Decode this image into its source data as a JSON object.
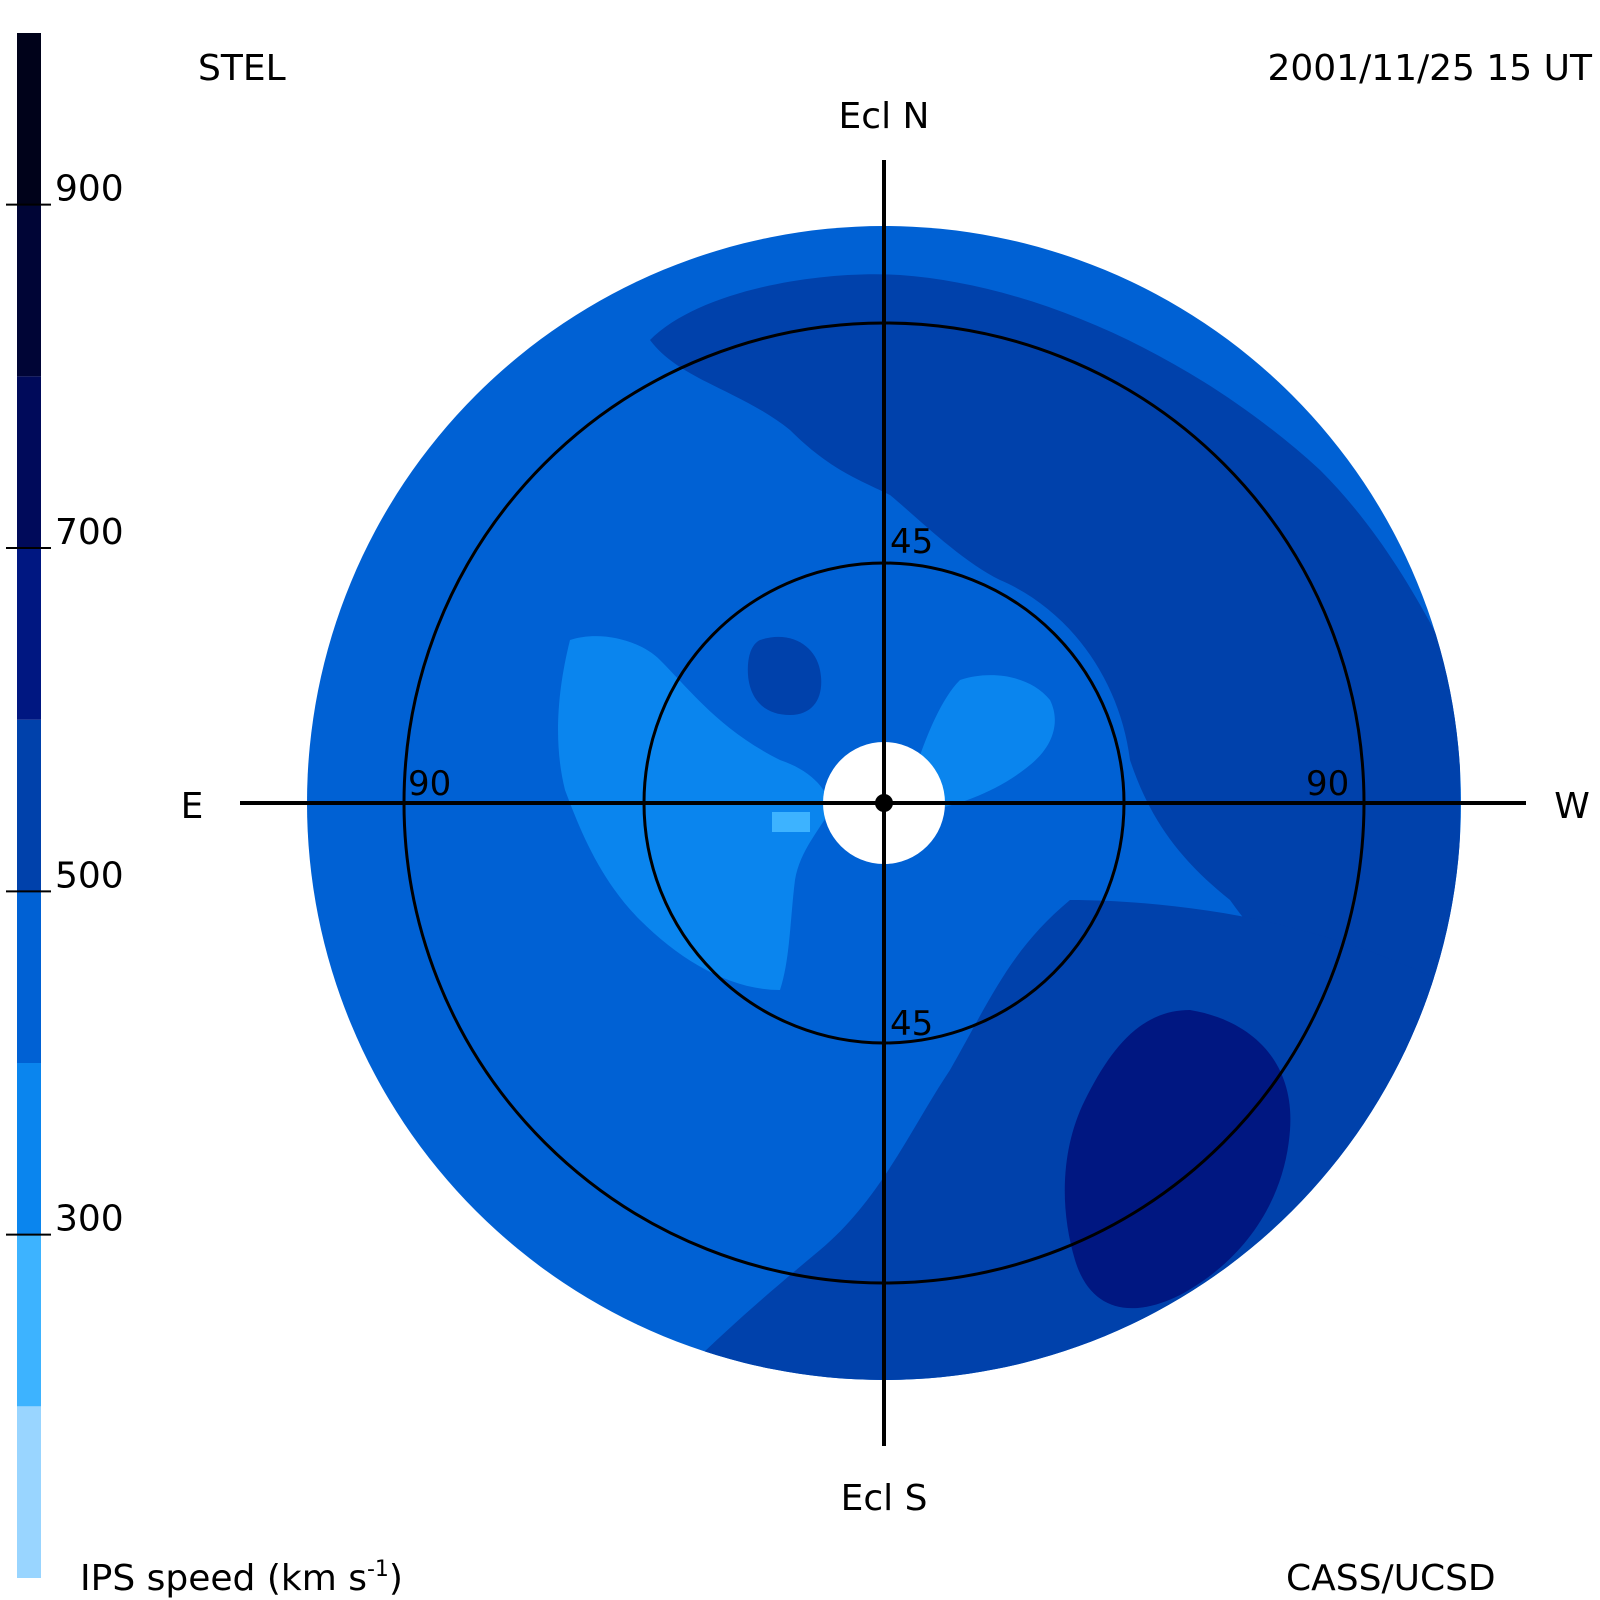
{
  "header": {
    "left_label": "STEL",
    "right_label": "2001/11/25 15 UT"
  },
  "footer": {
    "left_label": "IPS speed (km s",
    "left_label_sup": "-1",
    "left_label_close": ")",
    "right_label": "CASS/UCSD"
  },
  "directions": {
    "north": "Ecl N",
    "south": "Ecl S",
    "east": "E",
    "west": "W"
  },
  "rings": {
    "inner_north_label": "45",
    "inner_south_label": "45",
    "outer_east_label": "90",
    "outer_west_label": "90"
  },
  "chart_data": {
    "type": "heatmap",
    "projection": "fisheye sky map centered on the Sun",
    "color_scale": {
      "title": "IPS speed (km s-1)",
      "tick_labels": [
        "300",
        "500",
        "700",
        "900"
      ],
      "tick_values": [
        300,
        500,
        700,
        900
      ],
      "range": [
        100,
        1000
      ],
      "bins": [
        {
          "from": 100,
          "to": 200,
          "color": "#99d5ff"
        },
        {
          "from": 200,
          "to": 300,
          "color": "#3db3ff"
        },
        {
          "from": 300,
          "to": 400,
          "color": "#0a85ee"
        },
        {
          "from": 400,
          "to": 500,
          "color": "#0061d4"
        },
        {
          "from": 500,
          "to": 600,
          "color": "#0041ab"
        },
        {
          "from": 600,
          "to": 700,
          "color": "#001781"
        },
        {
          "from": 700,
          "to": 800,
          "color": "#000a5a"
        },
        {
          "from": 800,
          "to": 900,
          "color": "#000536"
        },
        {
          "from": 900,
          "to": 1000,
          "color": "#00021a"
        }
      ]
    },
    "rings_elongation_deg": [
      45,
      90
    ],
    "regions": [
      {
        "name": "background",
        "speed_range": [
          400,
          500
        ],
        "color": "#0061d4"
      },
      {
        "name": "northwest high-speed band",
        "speed_range": [
          500,
          600
        ],
        "color": "#0041ab"
      },
      {
        "name": "southwest high-speed band",
        "speed_range": [
          500,
          600
        ],
        "color": "#0041ab"
      },
      {
        "name": "southwest fast stream",
        "speed_range": [
          600,
          700
        ],
        "color": "#001781"
      },
      {
        "name": "small northeast fast patch",
        "speed_range": [
          500,
          600
        ],
        "color": "#0041ab"
      },
      {
        "name": "slow region east of Sun",
        "speed_range": [
          300,
          400
        ],
        "color": "#0a85ee"
      },
      {
        "name": "slow region west of Sun",
        "speed_range": [
          300,
          400
        ],
        "color": "#0a85ee"
      },
      {
        "name": "very slow speck",
        "speed_range": [
          200,
          300
        ],
        "color": "#3db3ff"
      }
    ]
  }
}
